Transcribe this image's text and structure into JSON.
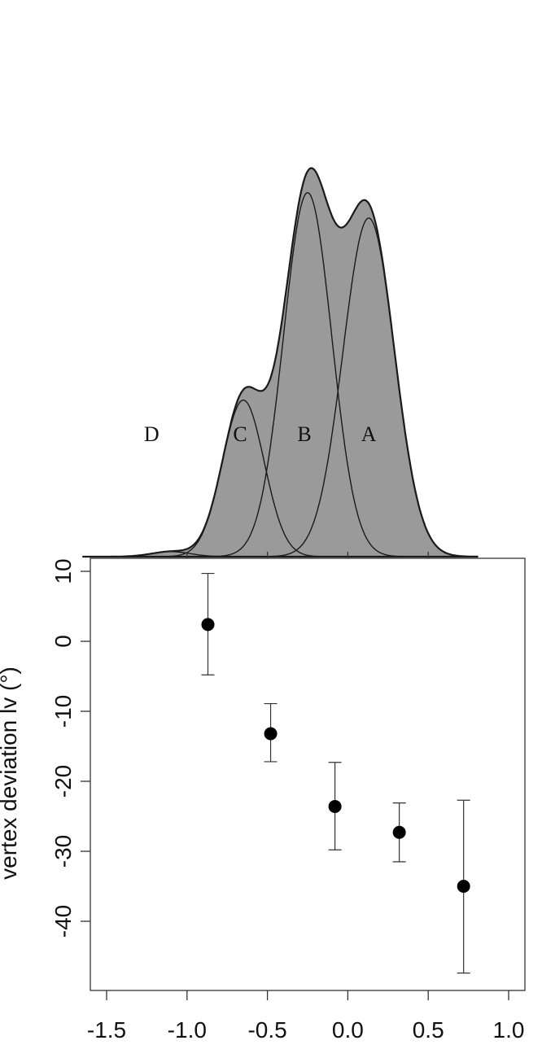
{
  "chart_data": [
    {
      "type": "area",
      "title": "",
      "component_labels": [
        {
          "label": "A",
          "x": 0.13
        },
        {
          "label": "B",
          "x": -0.27
        },
        {
          "label": "C",
          "x": -0.67
        },
        {
          "label": "D",
          "x": -1.22
        }
      ],
      "components": [
        {
          "label": "A",
          "mean": 0.13,
          "sd": 0.16,
          "peak": 0.8
        },
        {
          "label": "B",
          "mean": -0.25,
          "sd": 0.15,
          "peak": 0.86
        },
        {
          "label": "C",
          "mean": -0.65,
          "sd": 0.13,
          "peak": 0.37
        },
        {
          "label": "D",
          "mean": -1.1,
          "sd": 0.12,
          "peak": 0.012
        }
      ],
      "colors": {
        "fill": "#9a9a9a",
        "stroke": "#1a1a1a"
      }
    },
    {
      "type": "scatter",
      "xlabel": "",
      "ylabel": "vertex deviation lv (°)",
      "xlim": [
        -1.6,
        1.02
      ],
      "ylim": [
        -49,
        11
      ],
      "xticks": [
        "-1.5",
        "-1.0",
        "-0.5",
        "0.0",
        "0.5",
        "1.0"
      ],
      "yticks": [
        "10",
        "0",
        "-10",
        "-20",
        "-30",
        "-40"
      ],
      "points": [
        {
          "x": -0.87,
          "y": 2.4,
          "err_low": -4.8,
          "err_high": 9.7
        },
        {
          "x": -0.48,
          "y": -13.2,
          "err_low": -17.2,
          "err_high": -8.9
        },
        {
          "x": -0.08,
          "y": -23.6,
          "err_low": -29.8,
          "err_high": -17.3
        },
        {
          "x": 0.32,
          "y": -27.3,
          "err_low": -31.5,
          "err_high": -23.1
        },
        {
          "x": 0.72,
          "y": -35.0,
          "err_low": -47.4,
          "err_high": -22.7
        }
      ],
      "colors": {
        "marker": "#000000",
        "errorbar": "#333333"
      }
    }
  ]
}
